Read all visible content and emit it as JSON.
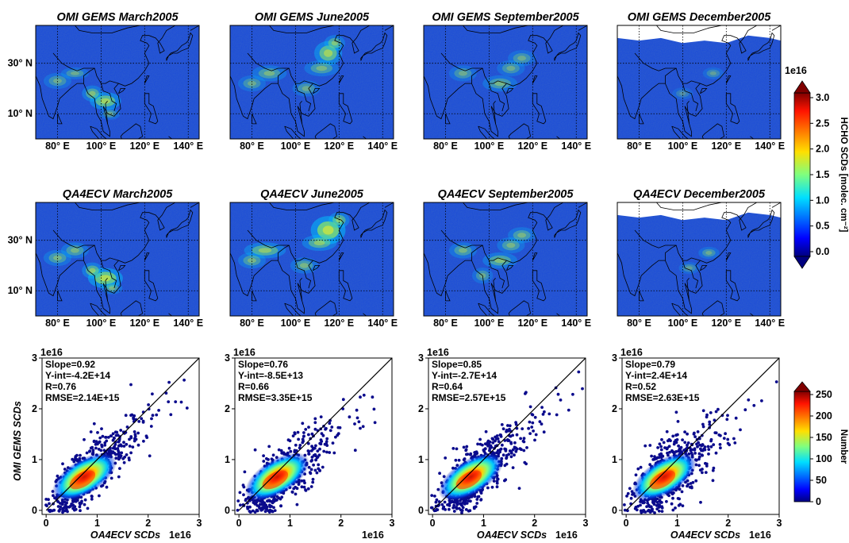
{
  "figure": {
    "colorbar_map": {
      "label": "HCHO SCDs [molec. cm⁻²]",
      "exponent": "1e16",
      "ticks": [
        "0.0",
        "0.5",
        "1.0",
        "1.5",
        "2.0",
        "2.5",
        "3.0"
      ]
    },
    "colorbar_scatter": {
      "label": "Number",
      "ticks": [
        "0",
        "50",
        "100",
        "150",
        "200",
        "250"
      ]
    },
    "colors": {
      "low": "#00007f",
      "mid": "#7fff7f",
      "high": "#7f0000",
      "ocean": "#1f4fd6",
      "land_outline": "#000000"
    }
  },
  "chart_data": [
    {
      "type": "heatmap",
      "title": "OMI GEMS March2005",
      "xticks": [
        "80° E",
        "100° E",
        "120° E",
        "140° E"
      ],
      "yticks": [
        "30° N",
        "10° N"
      ],
      "colorscale": "jet",
      "clim": [
        0,
        3e+16
      ]
    },
    {
      "type": "heatmap",
      "title": "OMI GEMS June2005",
      "xticks": [
        "80° E",
        "100° E",
        "120° E",
        "140° E"
      ],
      "colorscale": "jet",
      "clim": [
        0,
        3e+16
      ]
    },
    {
      "type": "heatmap",
      "title": "OMI GEMS September2005",
      "xticks": [
        "80° E",
        "100° E",
        "120° E",
        "140° E"
      ],
      "colorscale": "jet",
      "clim": [
        0,
        3e+16
      ]
    },
    {
      "type": "heatmap",
      "title": "OMI GEMS December2005",
      "xticks": [
        "80° E",
        "100° E",
        "120° E",
        "140° E"
      ],
      "colorscale": "jet",
      "clim": [
        0,
        3e+16
      ]
    },
    {
      "type": "heatmap",
      "title": "QA4ECV March2005",
      "xticks": [
        "80° E",
        "100° E",
        "120° E",
        "140° E"
      ],
      "yticks": [
        "30° N",
        "10° N"
      ],
      "colorscale": "jet",
      "clim": [
        0,
        3e+16
      ]
    },
    {
      "type": "heatmap",
      "title": "QA4ECV June2005",
      "xticks": [
        "80° E",
        "100° E",
        "120° E",
        "140° E"
      ],
      "colorscale": "jet",
      "clim": [
        0,
        3e+16
      ]
    },
    {
      "type": "heatmap",
      "title": "QA4ECV September2005",
      "xticks": [
        "80° E",
        "100° E",
        "120° E",
        "140° E"
      ],
      "colorscale": "jet",
      "clim": [
        0,
        3e+16
      ]
    },
    {
      "type": "heatmap",
      "title": "QA4ECV December2005",
      "xticks": [
        "80° E",
        "100° E",
        "120° E",
        "140° E"
      ],
      "colorscale": "jet",
      "clim": [
        0,
        3e+16
      ]
    },
    {
      "type": "scatter",
      "xlabel": "OA4ECV SCDs",
      "ylabel": "OMI GEMS SCDs",
      "xlim": [
        0,
        3
      ],
      "ylim": [
        0,
        3
      ],
      "exponent": "1e16",
      "xticks": [
        "0",
        "1",
        "2",
        "3"
      ],
      "yticks": [
        "0",
        "1",
        "2",
        "3"
      ],
      "stats": [
        "Slope=0.92",
        "Y-int=-4.2E+14",
        "R=0.76",
        "RMSE=2.14E+15"
      ],
      "slope": 0.92,
      "intercept": -0.042,
      "spread": 0.26
    },
    {
      "type": "scatter",
      "xlabel": "",
      "ylabel": "",
      "xlim": [
        0,
        3
      ],
      "ylim": [
        0,
        3
      ],
      "exponent": "1e16",
      "xticks": [
        "0",
        "1",
        "2",
        "3"
      ],
      "yticks": [
        "0",
        "1",
        "2",
        "3"
      ],
      "stats": [
        "Slope=0.76",
        "Y-int=-8.5E+13",
        "R=0.66",
        "RMSE=3.35E+15"
      ],
      "slope": 0.76,
      "intercept": -0.0085,
      "spread": 0.3
    },
    {
      "type": "scatter",
      "xlabel": "OA4ECV SCDs",
      "ylabel": "",
      "xlim": [
        0,
        3
      ],
      "ylim": [
        0,
        3
      ],
      "exponent": "1e16",
      "xticks": [
        "0",
        "1",
        "2",
        "3"
      ],
      "yticks": [
        "0",
        "1",
        "2",
        "3"
      ],
      "stats": [
        "Slope=0.85",
        "Y-int=-2.7E+14",
        "R=0.64",
        "RMSE=2.57E+15"
      ],
      "slope": 0.85,
      "intercept": -0.027,
      "spread": 0.28
    },
    {
      "type": "scatter",
      "xlabel": "OA4ECV SCDs",
      "ylabel": "",
      "xlim": [
        0,
        3
      ],
      "ylim": [
        0,
        3
      ],
      "exponent": "1e16",
      "xticks": [
        "0",
        "1",
        "2",
        "3"
      ],
      "yticks": [
        "0",
        "1",
        "2",
        "3"
      ],
      "stats": [
        "Slope=0.79",
        "Y-int=2.4E+14",
        "R=0.52",
        "RMSE=2.63E+15"
      ],
      "slope": 0.79,
      "intercept": 0.024,
      "spread": 0.34
    }
  ]
}
